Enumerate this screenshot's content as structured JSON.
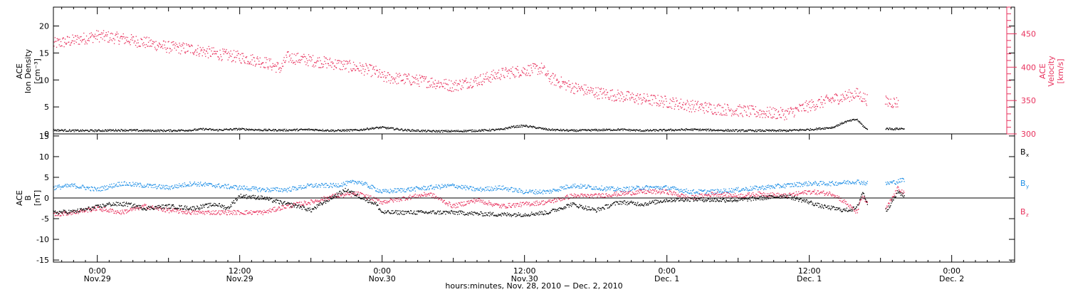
{
  "colors": {
    "black": "#000000",
    "pink": "#e8315d",
    "blue": "#1f8fe6"
  },
  "xaxis": {
    "title": "hours:minutes, Nov. 28, 2010 − Dec. 2, 2010",
    "range_hours": [
      -3.7,
      77.3
    ],
    "ticks": [
      {
        "hour": 0,
        "time": "0:00",
        "date": "Nov.29"
      },
      {
        "hour": 12,
        "time": "12:00",
        "date": "Nov.29"
      },
      {
        "hour": 24,
        "time": "0:00",
        "date": "Nov.30"
      },
      {
        "hour": 36,
        "time": "12:00",
        "date": "Nov.30"
      },
      {
        "hour": 48,
        "time": "0:00",
        "date": "Dec. 1"
      },
      {
        "hour": 60,
        "time": "12:00",
        "date": "Dec. 1"
      },
      {
        "hour": 72,
        "time": "0:00",
        "date": "Dec. 2"
      }
    ]
  },
  "panel1": {
    "left_label": [
      "ACE",
      "Ion Density",
      "[cm⁻³]"
    ],
    "right_label": [
      "ACE",
      "Velocity",
      "[km/s]"
    ]
  },
  "panel2": {
    "left_label": [
      "ACE",
      "B",
      "[nT]"
    ],
    "legend": [
      {
        "base": "B",
        "sub": "x",
        "color": "#000000"
      },
      {
        "base": "B",
        "sub": "y",
        "color": "#1f8fe6"
      },
      {
        "base": "B",
        "sub": "z",
        "color": "#e8315d"
      }
    ]
  },
  "chart_data": [
    {
      "type": "scatter",
      "title": "",
      "xlabel": "hours:minutes, Nov. 28, 2010 − Dec. 2, 2010",
      "ylabel": "ACE Ion Density [cm⁻³]",
      "y2label": "ACE Velocity [km/s]",
      "x_unit": "hours from Nov. 29, 2010 0:00",
      "ylim": [
        0,
        23.5
      ],
      "yticks": [
        0,
        5,
        10,
        15,
        20
      ],
      "y2lim": [
        300,
        490
      ],
      "y2ticks": [
        300,
        350,
        400,
        450
      ],
      "grid": false,
      "series": [
        {
          "name": "Ion Density",
          "color": "#000000",
          "axis": "left",
          "x": [
            -3.7,
            -2,
            0,
            2,
            4,
            6,
            8,
            9,
            10,
            12,
            14,
            16,
            18,
            20,
            22,
            23,
            24,
            26,
            28,
            30,
            32,
            34,
            35,
            36,
            38,
            40,
            42,
            44,
            46,
            48,
            50,
            52,
            54,
            56,
            58,
            60,
            62,
            63,
            64,
            64.8,
            66.5,
            67,
            68
          ],
          "y": [
            0.7,
            0.6,
            0.6,
            0.7,
            0.6,
            0.6,
            0.7,
            0.9,
            0.7,
            0.9,
            0.7,
            0.7,
            0.8,
            0.6,
            0.7,
            1.0,
            1.2,
            0.7,
            0.5,
            0.5,
            0.6,
            0.8,
            1.3,
            1.5,
            0.8,
            0.6,
            0.7,
            0.8,
            0.6,
            0.7,
            0.8,
            0.7,
            0.6,
            0.6,
            0.6,
            0.8,
            1.2,
            2.2,
            2.7,
            0.9,
            1.0,
            0.9,
            1.0
          ]
        },
        {
          "name": "Velocity",
          "color": "#e8315d",
          "axis": "right",
          "x": [
            -3.7,
            -2,
            0,
            2,
            4,
            6,
            8,
            10,
            12,
            14,
            15.5,
            16,
            18,
            20,
            22,
            23.5,
            24,
            26,
            28,
            30,
            32,
            34,
            36,
            37.5,
            38,
            40,
            42,
            44,
            46,
            48,
            50,
            52,
            54,
            56,
            58,
            60,
            62,
            64,
            65,
            66.5,
            67.5
          ],
          "y": [
            435,
            440,
            447,
            443,
            437,
            430,
            427,
            420,
            415,
            408,
            398,
            415,
            410,
            405,
            399,
            393,
            385,
            382,
            378,
            372,
            380,
            390,
            395,
            398,
            385,
            370,
            362,
            357,
            352,
            348,
            342,
            338,
            335,
            332,
            330,
            342,
            352,
            360,
            350,
            348,
            347
          ]
        }
      ]
    },
    {
      "type": "scatter",
      "title": "",
      "xlabel": "hours:minutes, Nov. 28, 2010 − Dec. 2, 2010",
      "ylabel": "ACE B [nT]",
      "x_unit": "hours from Nov. 29, 2010 0:00",
      "ylim": [
        -15.5,
        15.5
      ],
      "yticks": [
        -15,
        -10,
        -5,
        0,
        5,
        10,
        15
      ],
      "zero_line": true,
      "grid": false,
      "series": [
        {
          "name": "Bx",
          "color": "#000000",
          "x": [
            -3.7,
            -2,
            -0.5,
            1,
            2.5,
            4,
            6,
            8,
            10,
            11,
            12,
            14,
            16,
            17,
            18,
            20,
            21,
            22,
            23.5,
            24,
            26,
            28,
            30,
            32,
            34,
            36,
            38,
            40,
            42,
            44,
            46,
            48,
            50,
            52,
            54,
            56,
            58,
            60,
            61,
            62,
            63,
            64,
            64.5,
            65,
            66.5,
            67.5,
            68
          ],
          "y": [
            -3.5,
            -3.3,
            -2.5,
            -1.5,
            -1.5,
            -2.5,
            -2.0,
            -2.5,
            -1.5,
            -2.5,
            0.5,
            0.0,
            -1.5,
            -2.0,
            -3.0,
            0.5,
            2.0,
            0.5,
            -1.5,
            -3.5,
            -3.5,
            -3.5,
            -3.5,
            -3.8,
            -4.0,
            -4.0,
            -3.5,
            -1.5,
            -3.0,
            -1.0,
            -1.5,
            -0.5,
            -0.3,
            -0.5,
            -0.5,
            0.0,
            0.5,
            -1.0,
            -2.0,
            -2.5,
            -3.0,
            -2.5,
            1.5,
            -2.0,
            -3.0,
            1.5,
            0.5
          ]
        },
        {
          "name": "By",
          "color": "#1f8fe6",
          "x": [
            -3.7,
            -2,
            0,
            2,
            4,
            6,
            8,
            10,
            12,
            14,
            16,
            18,
            20,
            22,
            24,
            26,
            28,
            30,
            32,
            34,
            36,
            38,
            40,
            42,
            44,
            46,
            48,
            50,
            52,
            54,
            56,
            58,
            60,
            62,
            64,
            65,
            66.5,
            67.5,
            68
          ],
          "y": [
            2.5,
            3.0,
            2.0,
            3.5,
            3.0,
            2.5,
            3.5,
            3.0,
            2.5,
            2.0,
            2.0,
            3.0,
            3.0,
            4.0,
            1.5,
            2.0,
            2.5,
            3.0,
            2.0,
            2.5,
            1.5,
            1.5,
            3.0,
            2.5,
            2.0,
            2.5,
            2.5,
            1.5,
            1.5,
            2.0,
            2.5,
            3.0,
            3.5,
            3.5,
            4.0,
            3.5,
            3.5,
            4.0,
            4.5
          ]
        },
        {
          "name": "Bz",
          "color": "#e8315d",
          "x": [
            -3.7,
            -2,
            0,
            2,
            4,
            6,
            8,
            10,
            12,
            14,
            16,
            18,
            20,
            22,
            24,
            26,
            28,
            30,
            32,
            34,
            36,
            38,
            40,
            42,
            44,
            46,
            48,
            50,
            52,
            54,
            56,
            58,
            60,
            62,
            63,
            64,
            64.5,
            65,
            66.5,
            67.5,
            68
          ],
          "y": [
            -4.0,
            -3.5,
            -2.5,
            -3.5,
            -2.0,
            -3.0,
            -3.5,
            -3.5,
            -3.5,
            -3.5,
            -2.0,
            -1.0,
            0.5,
            1.0,
            -1.0,
            0.0,
            1.0,
            -2.0,
            -0.5,
            -2.0,
            -1.5,
            -1.0,
            0.5,
            0.5,
            1.0,
            1.5,
            1.5,
            0.0,
            1.0,
            0.5,
            1.0,
            0.5,
            1.5,
            1.0,
            -1.0,
            -3.5,
            0.5,
            -2.0,
            -2.5,
            2.5,
            1.0
          ]
        }
      ]
    }
  ]
}
